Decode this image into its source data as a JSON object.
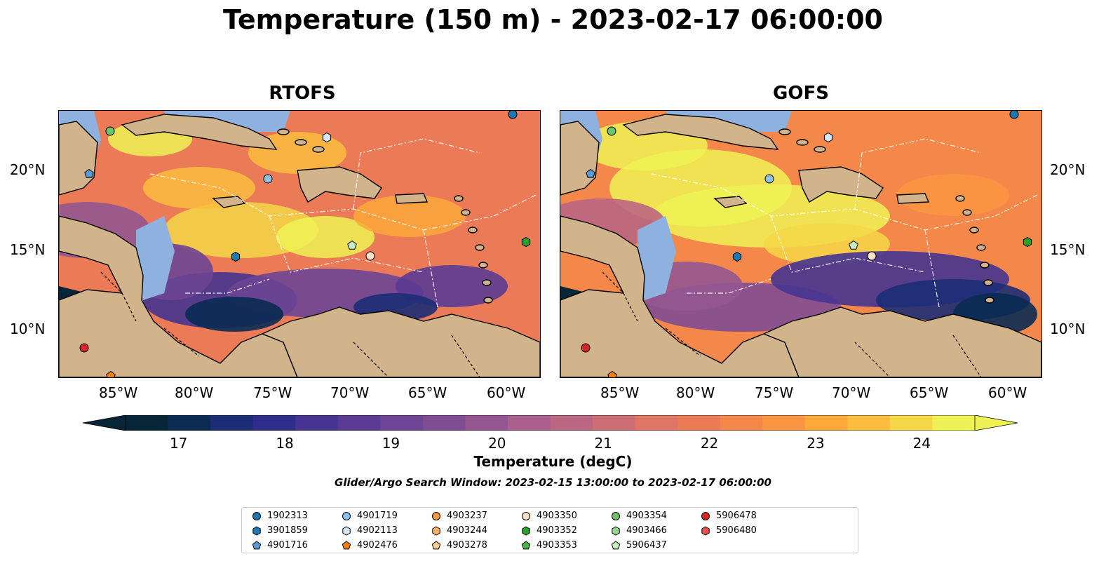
{
  "title": "Temperature (150 m) - 2023-02-17 06:00:00",
  "panels": [
    {
      "title": "RTOFS"
    },
    {
      "title": "GOFS"
    }
  ],
  "axes": {
    "x_ticks": [
      "85°W",
      "80°W",
      "75°W",
      "70°W",
      "65°W",
      "60°W"
    ],
    "y_ticks": [
      "20°N",
      "15°N",
      "10°N"
    ]
  },
  "colorbar": {
    "label": "Temperature (degC)",
    "ticks": [
      "17",
      "18",
      "19",
      "20",
      "21",
      "22",
      "23",
      "24"
    ],
    "colors": [
      "#062536",
      "#0a2b52",
      "#1c2d75",
      "#2e2e8a",
      "#463491",
      "#5b3b93",
      "#6d4594",
      "#7f4d92",
      "#935690",
      "#a9608c",
      "#bb6682",
      "#cd6e74",
      "#de7565",
      "#eb7b56",
      "#f4884a",
      "#fa9641",
      "#fca83b",
      "#fbbd3e",
      "#f5d748",
      "#eef255"
    ],
    "range": [
      16.5,
      24.5
    ],
    "extend": "both"
  },
  "search_window": "Glider/Argo Search Window: 2023-02-15 13:00:00 to 2023-02-17 06:00:00",
  "legend": [
    {
      "id": "1902313",
      "marker": "circle",
      "color": "#1f77b4"
    },
    {
      "id": "3901859",
      "marker": "hexagon",
      "color": "#1f77b4"
    },
    {
      "id": "4901716",
      "marker": "pentagon",
      "color": "#5b9bd5"
    },
    {
      "id": "4901719",
      "marker": "circle",
      "color": "#8ec2e8"
    },
    {
      "id": "4902113",
      "marker": "hexagon",
      "color": "#d4e8f7"
    },
    {
      "id": "4902476",
      "marker": "pentagon",
      "color": "#f07f0e"
    },
    {
      "id": "4903237",
      "marker": "circle",
      "color": "#f5993d"
    },
    {
      "id": "4903244",
      "marker": "hexagon",
      "color": "#fbb06b"
    },
    {
      "id": "4903278",
      "marker": "pentagon",
      "color": "#fdc995"
    },
    {
      "id": "4903350",
      "marker": "circle",
      "color": "#fde0c5"
    },
    {
      "id": "4903352",
      "marker": "hexagon",
      "color": "#2ca02c"
    },
    {
      "id": "4903353",
      "marker": "pentagon",
      "color": "#4cb24c"
    },
    {
      "id": "4903354",
      "marker": "circle",
      "color": "#6cc46c"
    },
    {
      "id": "4903466",
      "marker": "hexagon",
      "color": "#98d594"
    },
    {
      "id": "5906437",
      "marker": "pentagon",
      "color": "#c7ecc1"
    },
    {
      "id": "5906478",
      "marker": "circle",
      "color": "#d62728"
    },
    {
      "id": "5906480",
      "marker": "hexagon",
      "color": "#e8534f"
    }
  ],
  "map_colors": {
    "land": "#d2b48c",
    "shelf": "#8fb1e0",
    "pacific": "#062536"
  }
}
